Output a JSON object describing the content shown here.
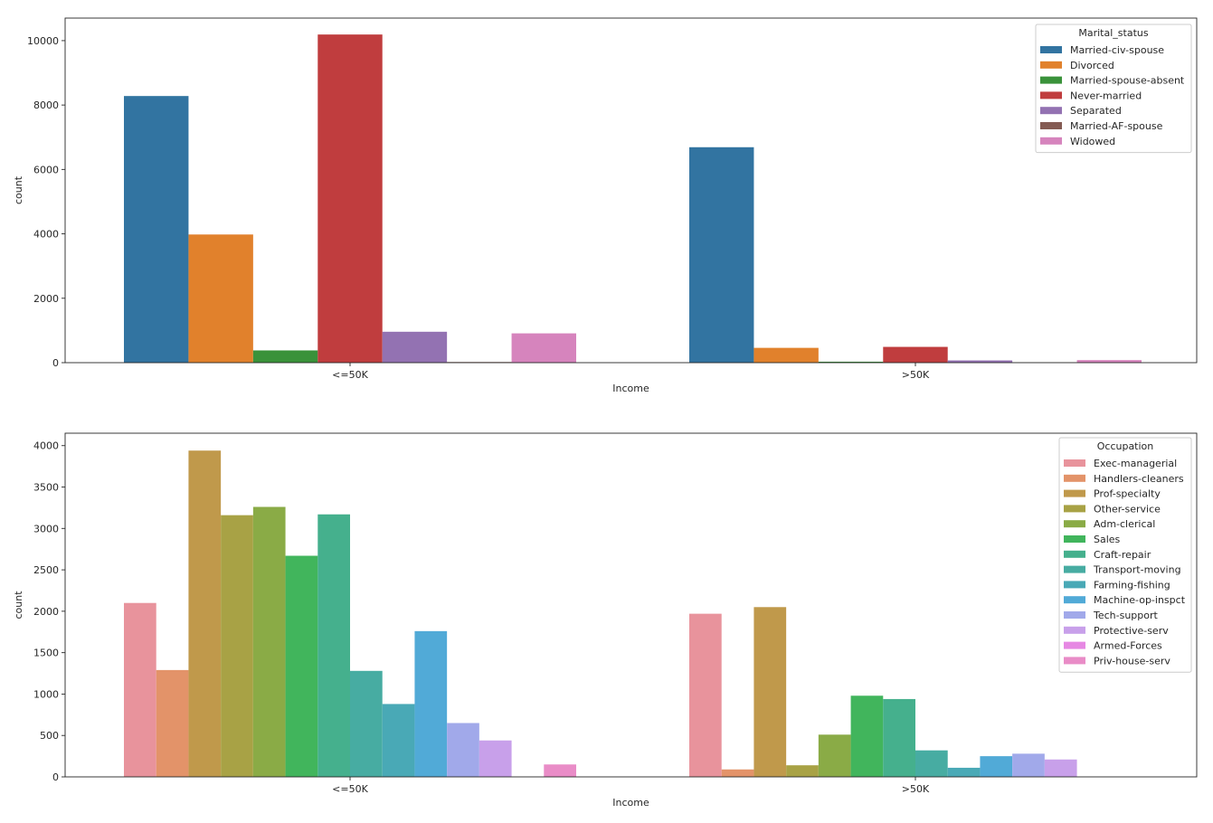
{
  "chart_data": [
    {
      "type": "bar",
      "xlabel": "Income",
      "ylabel": "count",
      "categories": [
        "<=50K",
        ">50K"
      ],
      "ylim": [
        0,
        10700
      ],
      "yticks": [
        0,
        2000,
        4000,
        6000,
        8000,
        10000
      ],
      "legend": {
        "title": "Marital_status",
        "placement": "top-right"
      },
      "series": [
        {
          "name": "Married-civ-spouse",
          "color": "#3274a1",
          "values": [
            8280,
            6690
          ]
        },
        {
          "name": "Divorced",
          "color": "#e1812c",
          "values": [
            3980,
            460
          ]
        },
        {
          "name": "Married-spouse-absent",
          "color": "#3a923a",
          "values": [
            380,
            30
          ]
        },
        {
          "name": "Never-married",
          "color": "#c03d3e",
          "values": [
            10190,
            490
          ]
        },
        {
          "name": "Separated",
          "color": "#9372b2",
          "values": [
            960,
            70
          ]
        },
        {
          "name": "Married-AF-spouse",
          "color": "#845b53",
          "values": [
            20,
            10
          ]
        },
        {
          "name": "Widowed",
          "color": "#d684bd",
          "values": [
            910,
            80
          ]
        }
      ]
    },
    {
      "type": "bar",
      "xlabel": "Income",
      "ylabel": "count",
      "categories": [
        "<=50K",
        ">50K"
      ],
      "ylim": [
        0,
        4150
      ],
      "yticks": [
        0,
        500,
        1000,
        1500,
        2000,
        2500,
        3000,
        3500,
        4000
      ],
      "legend": {
        "title": "Occupation",
        "placement": "top-right"
      },
      "series": [
        {
          "name": "Exec-managerial",
          "color": "#e8939c",
          "values": [
            2100,
            1970
          ]
        },
        {
          "name": "Handlers-cleaners",
          "color": "#e39369",
          "values": [
            1290,
            90
          ]
        },
        {
          "name": "Prof-specialty",
          "color": "#c0994b",
          "values": [
            3940,
            2050
          ]
        },
        {
          "name": "Other-service",
          "color": "#a8a245",
          "values": [
            3160,
            140
          ]
        },
        {
          "name": "Adm-clerical",
          "color": "#8aab46",
          "values": [
            3260,
            510
          ]
        },
        {
          "name": "Sales",
          "color": "#41b55c",
          "values": [
            2670,
            980
          ]
        },
        {
          "name": "Craft-repair",
          "color": "#45b08d",
          "values": [
            3170,
            940
          ]
        },
        {
          "name": "Transport-moving",
          "color": "#47aca2",
          "values": [
            1280,
            320
          ]
        },
        {
          "name": "Farming-fishing",
          "color": "#49a9b6",
          "values": [
            880,
            110
          ]
        },
        {
          "name": "Machine-op-inspct",
          "color": "#51aad7",
          "values": [
            1760,
            250
          ]
        },
        {
          "name": "Tech-support",
          "color": "#a1a9ea",
          "values": [
            650,
            280
          ]
        },
        {
          "name": "Protective-serv",
          "color": "#c8a0ea",
          "values": [
            440,
            210
          ]
        },
        {
          "name": "Armed-Forces",
          "color": "#e688e3",
          "values": [
            0,
            0
          ]
        },
        {
          "name": "Priv-house-serv",
          "color": "#e98cc7",
          "values": [
            150,
            0
          ]
        }
      ]
    }
  ]
}
